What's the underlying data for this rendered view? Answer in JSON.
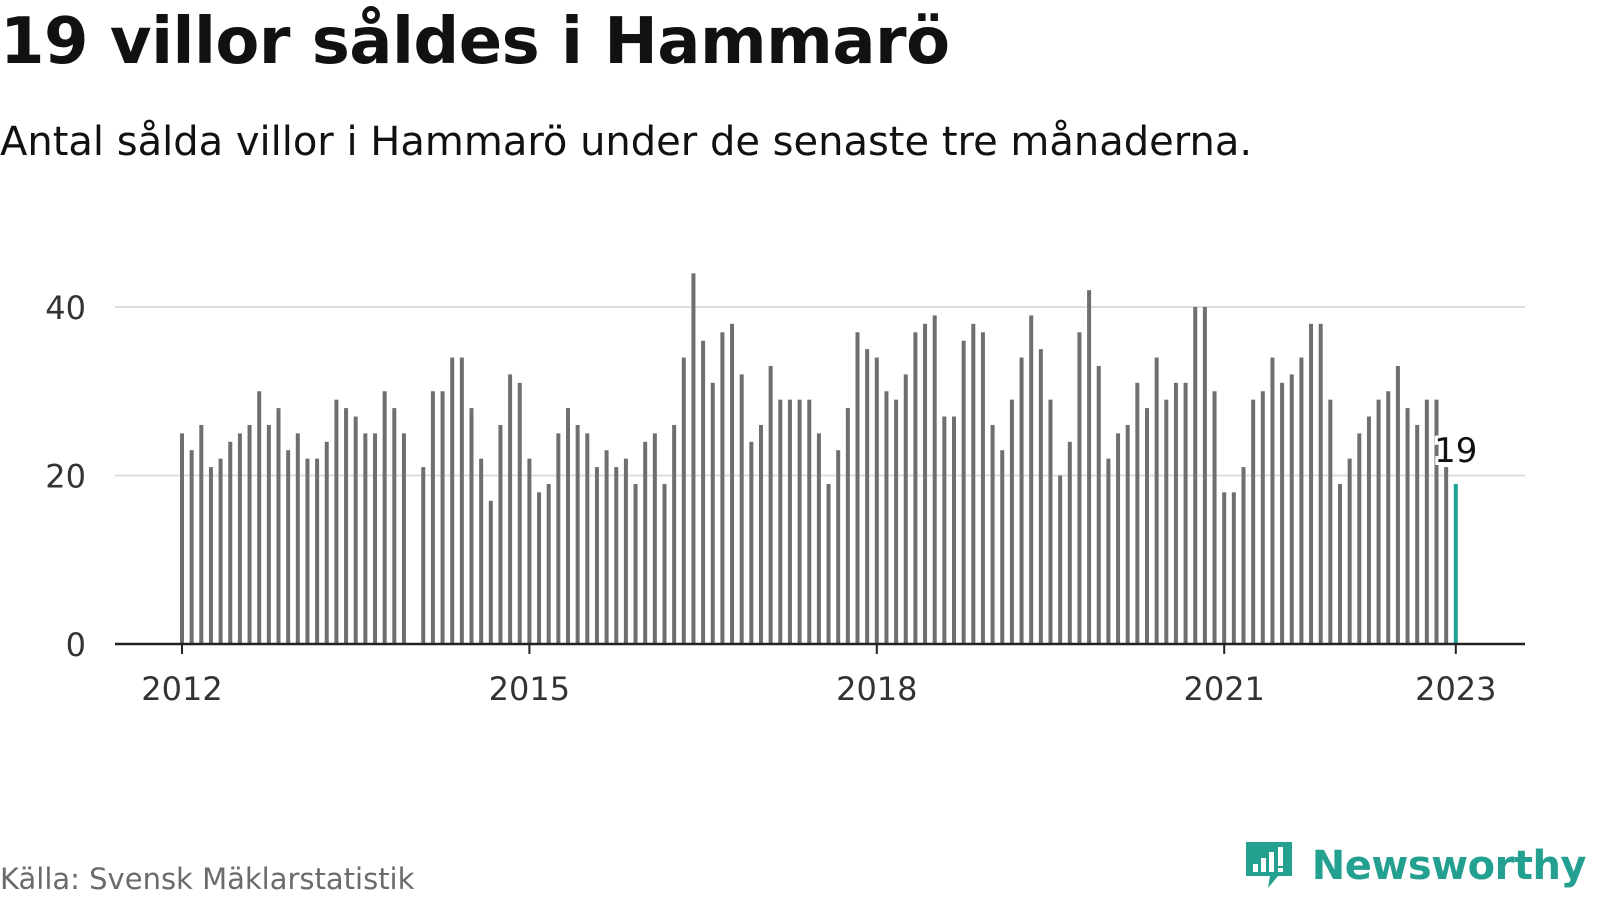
{
  "title": "19 villor såldes i Hammarö",
  "subtitle": "Antal sålda villor i Hammarö under de senaste tre månaderna.",
  "source": "Källa: Svensk Mäklarstatistik",
  "brand": {
    "name": "Newsworthy",
    "icon": "newsworthy-logo-icon",
    "color": "#24a091"
  },
  "colors": {
    "bar": "#6e6e73",
    "highlight": "#1aa391",
    "grid": "#dddddd",
    "axis": "#222222"
  },
  "chart_data": {
    "type": "bar",
    "title": "19 villor såldes i Hammarö",
    "subtitle": "Antal sålda villor i Hammarö under de senaste tre månaderna.",
    "xlabel": "",
    "ylabel": "",
    "ylim": [
      0,
      45
    ],
    "yticks": [
      0,
      20,
      40
    ],
    "grid": true,
    "x_tick_labels": [
      "2012",
      "2015",
      "2018",
      "2021",
      "2023"
    ],
    "x_start": "2012-01",
    "x_end": "2023-01",
    "highlight": {
      "x": "2023-01",
      "value": 19,
      "label": "19"
    },
    "series": [
      {
        "values": [
          25,
          23,
          26,
          21,
          22,
          24,
          25,
          26,
          30,
          26,
          28,
          23,
          25,
          22,
          22,
          24,
          29,
          28,
          27,
          25,
          25,
          30,
          28,
          25,
          null,
          21,
          30,
          30,
          34,
          34,
          28,
          22,
          17,
          26,
          32,
          31,
          22,
          18,
          19,
          25,
          28,
          26,
          25,
          21,
          23,
          21,
          22,
          19,
          24,
          25,
          19,
          26,
          34,
          44,
          36,
          31,
          37,
          38,
          32,
          24,
          26,
          33,
          29,
          29,
          29,
          29,
          25,
          19,
          23,
          28,
          37,
          35,
          34,
          30,
          29,
          32,
          37,
          38,
          39,
          27,
          27,
          36,
          38,
          37,
          26,
          23,
          29,
          34,
          39,
          35,
          29,
          20,
          24,
          37,
          42,
          33,
          22,
          25,
          26,
          31,
          28,
          34,
          29,
          31,
          31,
          40,
          40,
          30,
          18,
          18,
          21,
          29,
          30,
          34,
          31,
          32,
          34,
          38,
          38,
          29,
          19,
          22,
          25,
          27,
          29,
          30,
          33,
          28,
          26,
          29,
          29,
          21,
          19
        ]
      }
    ]
  }
}
